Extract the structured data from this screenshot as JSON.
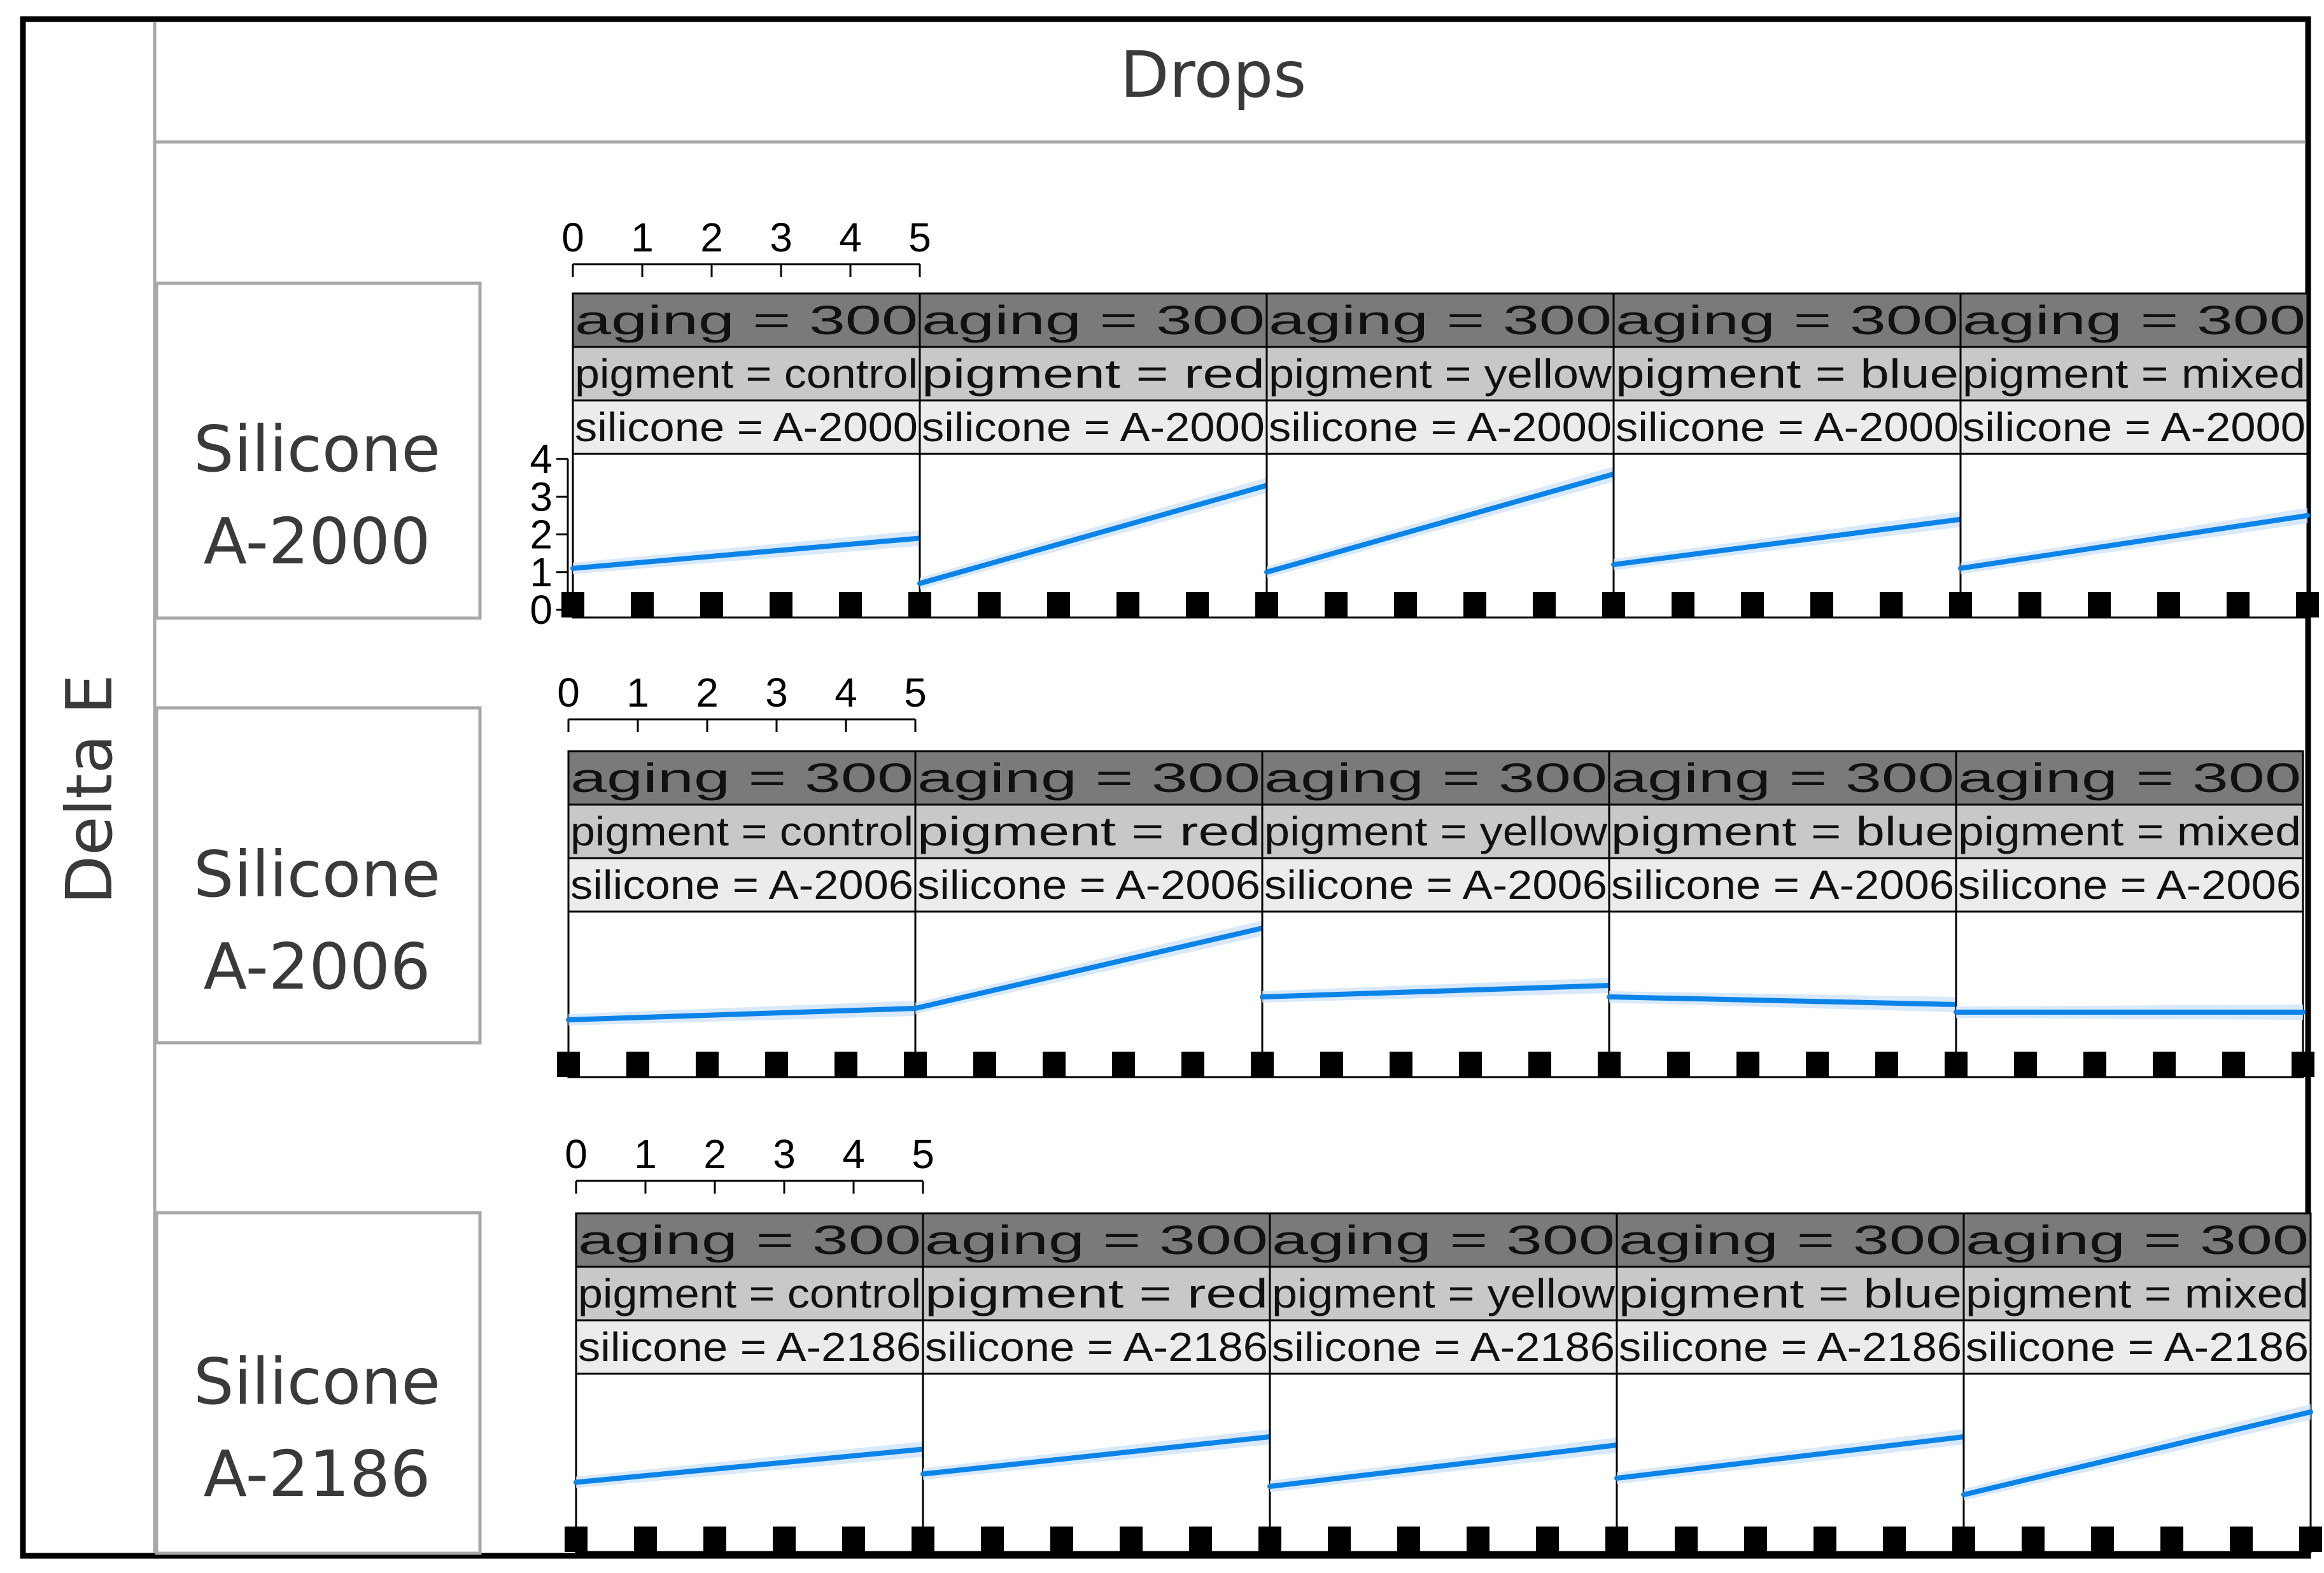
{
  "figure": {
    "top_label": "Drops",
    "side_label": "Delta E"
  },
  "rows": [
    {
      "label_line1": "Silicone",
      "label_line2": "A-2000"
    },
    {
      "label_line1": "Silicone",
      "label_line2": "A-2006"
    },
    {
      "label_line1": "Silicone",
      "label_line2": "A-2186"
    }
  ],
  "colors": {
    "strip_aging": "#7a7a7a",
    "strip_pigment": "#c8c8c8",
    "strip_silicone": "#ececec",
    "line": "#0a84e8",
    "band": "#cfe4f7",
    "frame": "#000000",
    "label_box": "#a8a8a8"
  },
  "chart_data": {
    "type": "line",
    "xlabel": "Drops",
    "ylabel": "Delta E",
    "x_ticks": [
      "0",
      "1",
      "2",
      "3",
      "4",
      "5"
    ],
    "y_ticks": [
      "0",
      "1",
      "2",
      "3",
      "4"
    ],
    "xlim": [
      0,
      5
    ],
    "ylim": [
      0,
      4
    ],
    "grid": false,
    "panels": [
      {
        "aging": "aging = 300",
        "pigment": "pigment = control",
        "silicone": "silicone = A-2000",
        "x": [
          0,
          5
        ],
        "y": [
          1.1,
          1.9
        ]
      },
      {
        "aging": "aging = 300",
        "pigment": "pigment = red",
        "silicone": "silicone = A-2000",
        "x": [
          0,
          5
        ],
        "y": [
          0.7,
          3.3
        ]
      },
      {
        "aging": "aging = 300",
        "pigment": "pigment = yellow",
        "silicone": "silicone = A-2000",
        "x": [
          0,
          5
        ],
        "y": [
          1.0,
          3.6
        ]
      },
      {
        "aging": "aging = 300",
        "pigment": "pigment = blue",
        "silicone": "silicone = A-2000",
        "x": [
          0,
          5
        ],
        "y": [
          1.2,
          2.4
        ]
      },
      {
        "aging": "aging = 300",
        "pigment": "pigment = mixed",
        "silicone": "silicone = A-2000",
        "x": [
          0,
          5
        ],
        "y": [
          1.1,
          2.5
        ]
      },
      {
        "aging": "aging = 300",
        "pigment": "pigment = control",
        "silicone": "silicone = A-2006",
        "x": [
          0,
          5
        ],
        "y": [
          1.3,
          1.6
        ]
      },
      {
        "aging": "aging = 300",
        "pigment": "pigment = red",
        "silicone": "silicone = A-2006",
        "x": [
          0,
          5
        ],
        "y": [
          1.6,
          3.7
        ]
      },
      {
        "aging": "aging = 300",
        "pigment": "pigment = yellow",
        "silicone": "silicone = A-2006",
        "x": [
          0,
          5
        ],
        "y": [
          1.9,
          2.2
        ]
      },
      {
        "aging": "aging = 300",
        "pigment": "pigment = blue",
        "silicone": "silicone = A-2006",
        "x": [
          0,
          5
        ],
        "y": [
          1.9,
          1.7
        ]
      },
      {
        "aging": "aging = 300",
        "pigment": "pigment = mixed",
        "silicone": "silicone = A-2006",
        "x": [
          0,
          5
        ],
        "y": [
          1.5,
          1.5
        ]
      },
      {
        "aging": "aging = 300",
        "pigment": "pigment = control",
        "silicone": "silicone = A-2186",
        "x": [
          0,
          5
        ],
        "y": [
          1.5,
          2.3
        ]
      },
      {
        "aging": "aging = 300",
        "pigment": "pigment = red",
        "silicone": "silicone = A-2186",
        "x": [
          0,
          5
        ],
        "y": [
          1.7,
          2.6
        ]
      },
      {
        "aging": "aging = 300",
        "pigment": "pigment = yellow",
        "silicone": "silicone = A-2186",
        "x": [
          0,
          5
        ],
        "y": [
          1.4,
          2.4
        ]
      },
      {
        "aging": "aging = 300",
        "pigment": "pigment = blue",
        "silicone": "silicone = A-2186",
        "x": [
          0,
          5
        ],
        "y": [
          1.6,
          2.6
        ]
      },
      {
        "aging": "aging = 300",
        "pigment": "pigment = mixed",
        "silicone": "silicone = A-2186",
        "x": [
          0,
          5
        ],
        "y": [
          1.2,
          3.2
        ]
      }
    ]
  }
}
